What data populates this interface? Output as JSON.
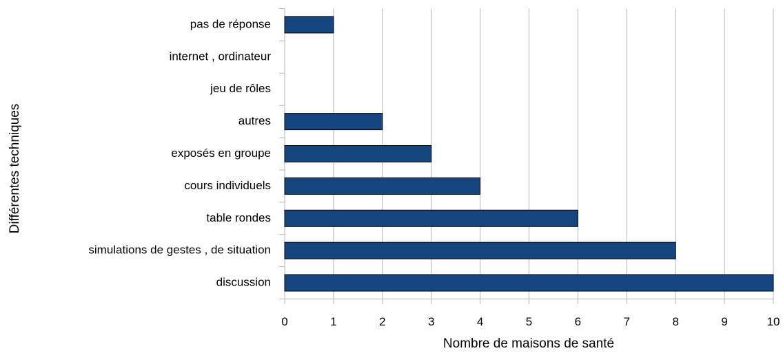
{
  "chart_data": {
    "type": "barh",
    "categories": [
      "pas de  réponse",
      "internet , ordinateur",
      "jeu de rôles",
      "autres",
      "exposés en groupe",
      "cours individuels",
      "table rondes",
      "simulations de gestes , de situation",
      "discussion"
    ],
    "values": [
      1,
      0,
      0,
      2,
      3,
      4,
      6,
      8,
      10
    ],
    "color": "#15467f",
    "x_label": "Nombre de maisons de santé",
    "y_label": "Différentes techniques",
    "xlim": [
      0,
      10
    ],
    "xticks": [
      0,
      1,
      2,
      3,
      4,
      5,
      6,
      7,
      8,
      9,
      10
    ],
    "grid": true
  }
}
